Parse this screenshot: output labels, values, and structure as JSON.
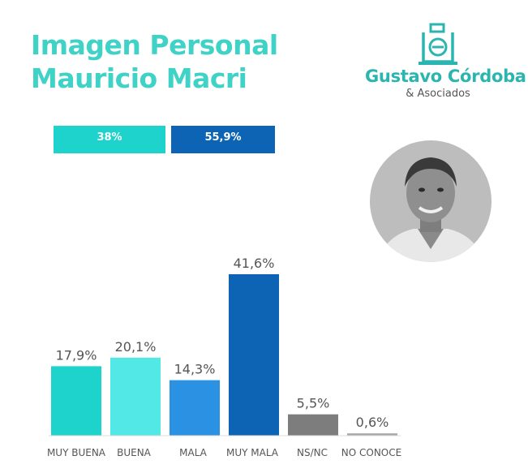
{
  "header": {
    "title_line1": "Imagen Personal",
    "title_line2": "Mauricio Macri"
  },
  "logo": {
    "name": "Gustavo Córdoba",
    "subtitle": "& Asociados",
    "icon": "ballot-box-icon"
  },
  "summary": {
    "positive": "38%",
    "negative": "55,9%"
  },
  "portrait": {
    "icon": "portrait-photo"
  },
  "colors": {
    "title": "#3fd2c6",
    "logo_text": "#2bb5b0",
    "positive_box": "#1ed3cc",
    "negative_box": "#0d63b4",
    "muy_buena": "#1ed3cc",
    "buena": "#52e8e6",
    "mala": "#2a91e3",
    "muy_mala": "#0d63b4",
    "nsnc": "#7d7d7d",
    "no_conoce": "#a8a8a8",
    "labels": "#555555"
  },
  "chart_data": {
    "type": "bar",
    "categories": [
      "MUY BUENA",
      "BUENA",
      "MALA",
      "MUY MALA",
      "NS/NC",
      "NO CONOCE"
    ],
    "values": [
      17.9,
      20.1,
      14.3,
      41.6,
      5.5,
      0.6
    ],
    "data_labels": [
      "17,9%",
      "20,1%",
      "14,3%",
      "41,6%",
      "5,5%",
      "0,6%"
    ],
    "ylim": [
      0,
      41.6
    ],
    "grid": false,
    "legend": "none"
  }
}
